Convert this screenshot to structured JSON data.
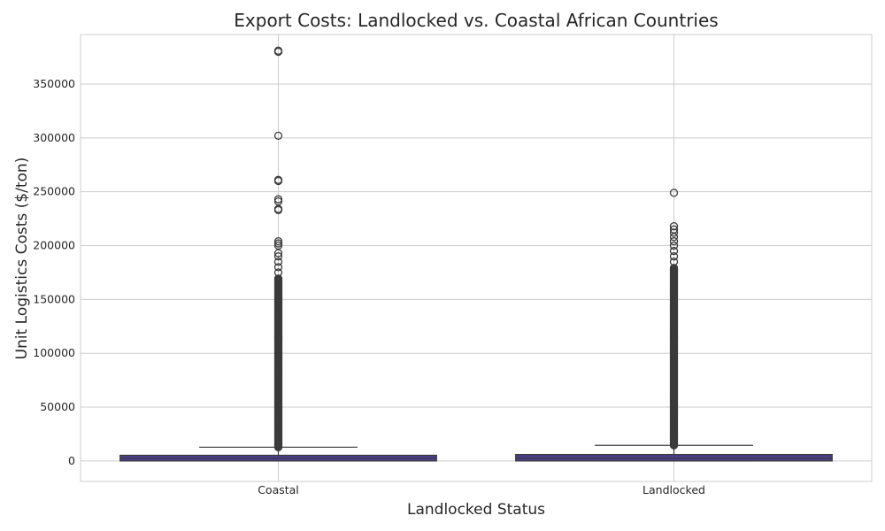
{
  "chart_data": {
    "type": "box",
    "title": "Export Costs: Landlocked vs. Coastal African Countries",
    "xlabel": "Landlocked Status",
    "ylabel": "Unit Logistics Costs ($/ton)",
    "ylim": [
      -19000,
      396000
    ],
    "yticks": [
      0,
      50000,
      100000,
      150000,
      200000,
      250000,
      300000,
      350000
    ],
    "grid": true,
    "box_color": "#4a3f8c",
    "categories": [
      "Coastal",
      "Landlocked"
    ],
    "boxes": [
      {
        "category": "Coastal",
        "whisker_low": 0,
        "q1": 0,
        "median": 2500,
        "q3": 5300,
        "whisker_high": 12800,
        "outlier_dense_range": [
          12800,
          170000
        ],
        "outliers": [
          175000,
          180000,
          185000,
          190000,
          193000,
          200000,
          202000,
          204000,
          233000,
          234000,
          241000,
          243000,
          260000,
          261000,
          302000,
          380000,
          381000
        ]
      },
      {
        "category": "Landlocked",
        "whisker_low": 0,
        "q1": 0,
        "median": 2600,
        "q3": 6000,
        "whisker_high": 14500,
        "outlier_dense_range": [
          14500,
          180000
        ],
        "outliers": [
          185000,
          190000,
          195000,
          200000,
          204000,
          208000,
          212000,
          215000,
          218000,
          249000
        ]
      }
    ]
  }
}
